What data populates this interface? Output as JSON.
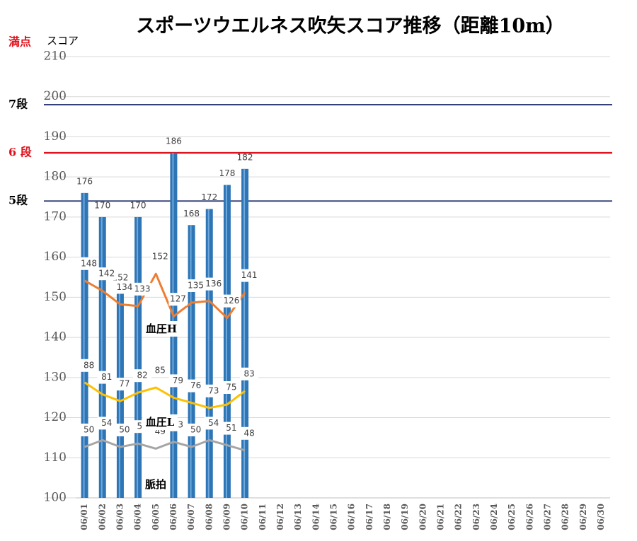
{
  "chart_data": {
    "type": "bar_line",
    "title": "スポーツウエルネス吹矢スコア推移（距離10m）",
    "y_label": "スコア",
    "top_label": "満点",
    "categories": [
      "06/01",
      "06/02",
      "06/03",
      "06/04",
      "06/05",
      "06/06",
      "06/07",
      "06/08",
      "06/09",
      "06/10",
      "06/11",
      "06/12",
      "06/13",
      "06/14",
      "06/15",
      "06/16",
      "06/17",
      "06/18",
      "06/19",
      "06/20",
      "06/21",
      "06/22",
      "06/23",
      "06/24",
      "06/25",
      "06/26",
      "06/27",
      "06/28",
      "06/29",
      "06/30"
    ],
    "bars": {
      "color": "#2e75b6",
      "values": [
        176,
        170,
        152,
        170,
        null,
        186,
        168,
        172,
        178,
        182,
        null,
        null,
        null,
        null,
        null,
        null,
        null,
        null,
        null,
        null,
        null,
        null,
        null,
        null,
        null,
        null,
        null,
        null,
        null,
        null
      ]
    },
    "series": [
      {
        "name": "血圧H",
        "color": "#ed7d31",
        "axis": "y2",
        "values": [
          148,
          142,
          134,
          133,
          152,
          127,
          135,
          136,
          126,
          141,
          null,
          null,
          null,
          null,
          null,
          null,
          null,
          null,
          null,
          null,
          null,
          null,
          null,
          null,
          null,
          null,
          null,
          null,
          null,
          null
        ]
      },
      {
        "name": "血圧L",
        "color": "#ffc000",
        "axis": "y2",
        "values": [
          88,
          81,
          77,
          82,
          85,
          79,
          76,
          73,
          75,
          83,
          null,
          null,
          null,
          null,
          null,
          null,
          null,
          null,
          null,
          null,
          null,
          null,
          null,
          null,
          null,
          null,
          null,
          null,
          null,
          null
        ]
      },
      {
        "name": "脈拍",
        "color": "#a5a5a5",
        "axis": "y2",
        "values": [
          50,
          54,
          50,
          52,
          49,
          53,
          50,
          54,
          51,
          48,
          null,
          null,
          null,
          null,
          null,
          null,
          null,
          null,
          null,
          null,
          null,
          null,
          null,
          null,
          null,
          null,
          null,
          null,
          null,
          null
        ]
      }
    ],
    "reference_lines": [
      {
        "label": "7段",
        "value": 198,
        "color": "#1f2d6b"
      },
      {
        "label": "6 段",
        "value": 186,
        "color": "#e0141e"
      },
      {
        "label": "5段",
        "value": 174,
        "color": "#1f2d6b"
      }
    ],
    "ylim": [
      100,
      210
    ],
    "yticks": [
      100,
      110,
      120,
      130,
      140,
      150,
      160,
      170,
      180,
      190,
      200,
      210
    ],
    "y2lim": [
      20,
      280
    ],
    "grid": true
  }
}
